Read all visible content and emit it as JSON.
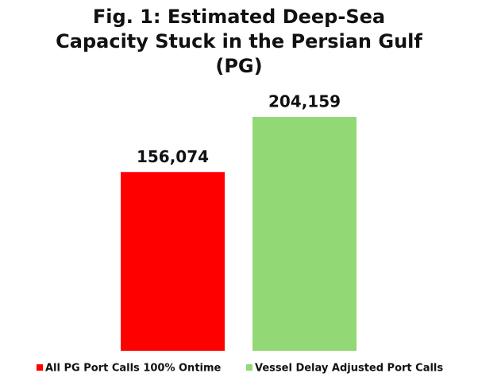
{
  "chart_data": {
    "type": "bar",
    "title": "Fig. 1: Estimated Deep-Sea Capacity Stuck in the Persian Gulf (PG)",
    "categories": [
      null
    ],
    "series": [
      {
        "name": "All PG Port Calls 100% Ontime",
        "color": "#ff0000",
        "values": [
          156074
        ],
        "value_labels": [
          "156,074"
        ]
      },
      {
        "name": "Vessel Delay Adjusted Port Calls",
        "color": "#92d975",
        "values": [
          204159
        ],
        "value_labels": [
          "204,159"
        ]
      }
    ],
    "ylim": [
      0,
      250000
    ],
    "grid": false,
    "legend": "bottom"
  }
}
